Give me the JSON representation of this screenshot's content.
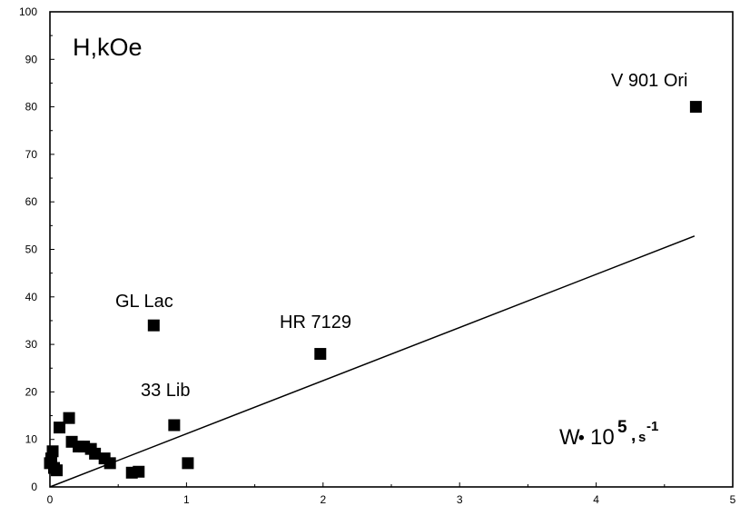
{
  "chart_data": {
    "type": "scatter",
    "ylabel": "H,kOe",
    "xlabel": {
      "main": "W",
      "dot": "•",
      "base": "10",
      "exponent": "5",
      "unit_sep": ",",
      "unit": "s",
      "unit_exp": "-1"
    },
    "xlim": [
      0,
      5
    ],
    "ylim": [
      0,
      100
    ],
    "x_ticks": [
      "0",
      "1",
      "2",
      "3",
      "4",
      "5"
    ],
    "y_ticks": [
      "0",
      "10",
      "20",
      "30",
      "40",
      "50",
      "60",
      "70",
      "80",
      "90",
      "100"
    ],
    "grid": false,
    "series": [
      {
        "marker": "square",
        "color": "#000000",
        "points": [
          {
            "x": 0.0,
            "y": 5.0
          },
          {
            "x": 0.01,
            "y": 6.0
          },
          {
            "x": 0.02,
            "y": 7.5
          },
          {
            "x": 0.03,
            "y": 4.0
          },
          {
            "x": 0.05,
            "y": 3.5
          },
          {
            "x": 0.07,
            "y": 12.5
          },
          {
            "x": 0.14,
            "y": 14.5
          },
          {
            "x": 0.16,
            "y": 9.5
          },
          {
            "x": 0.21,
            "y": 8.5
          },
          {
            "x": 0.25,
            "y": 8.5
          },
          {
            "x": 0.3,
            "y": 8.0
          },
          {
            "x": 0.33,
            "y": 7.0
          },
          {
            "x": 0.4,
            "y": 6.0
          },
          {
            "x": 0.44,
            "y": 5.0
          },
          {
            "x": 0.6,
            "y": 3.0
          },
          {
            "x": 0.65,
            "y": 3.2
          },
          {
            "x": 0.76,
            "y": 34.0
          },
          {
            "x": 0.91,
            "y": 13.0
          },
          {
            "x": 1.01,
            "y": 5.0
          },
          {
            "x": 1.98,
            "y": 28.0
          },
          {
            "x": 4.73,
            "y": 80.0
          }
        ]
      }
    ],
    "fit_line": {
      "x": [
        0,
        4.72
      ],
      "y": [
        0,
        52.8
      ]
    },
    "annotations": [
      {
        "text": "V 901 Ori",
        "x": 4.73,
        "y": 80.0
      },
      {
        "text": "GL Lac",
        "x": 0.76,
        "y": 34.0
      },
      {
        "text": "HR 7129",
        "x": 1.98,
        "y": 28.0
      },
      {
        "text": "33 Lib",
        "x": 0.91,
        "y": 13.0
      }
    ]
  }
}
